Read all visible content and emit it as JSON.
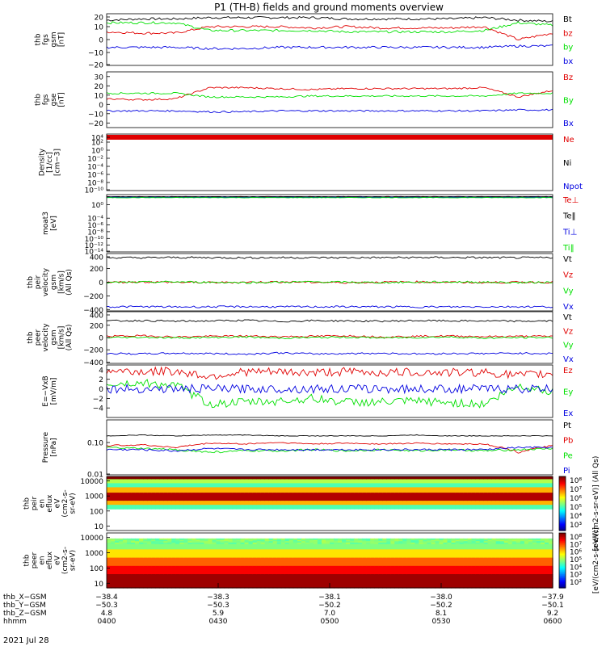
{
  "title": "P1 (TH-B) fields and ground moments overview",
  "date_label": "2021 Jul 28",
  "colors": {
    "black": "#000000",
    "red": "#e00000",
    "green": "#00e000",
    "blue": "#0000e0"
  },
  "chart_data": [
    {
      "type": "line",
      "ylabel": [
        "thb",
        "fgs",
        "gsm",
        "[nT]"
      ],
      "ylim": [
        -20,
        20
      ],
      "ticks": [
        "20",
        "10",
        "0",
        "−10",
        "−20"
      ],
      "tick_values": [
        20,
        10,
        0,
        -10,
        -20
      ],
      "series": [
        {
          "name": "Bt",
          "color": "black",
          "values": [
            15,
            16,
            16,
            17,
            17,
            17,
            17,
            16,
            16,
            16,
            16,
            17,
            15,
            14
          ]
        },
        {
          "name": "bz",
          "color": "red",
          "values": [
            6,
            5,
            5,
            10,
            10,
            10,
            9,
            10,
            9,
            9,
            9,
            10,
            0,
            5
          ]
        },
        {
          "name": "by",
          "color": "green",
          "values": [
            13,
            13,
            13,
            7,
            7,
            7,
            7,
            6,
            6,
            6,
            6,
            7,
            13,
            11
          ]
        },
        {
          "name": "bx",
          "color": "blue",
          "values": [
            -6,
            -6,
            -6,
            -7,
            -7,
            -6,
            -6,
            -6,
            -6,
            -6,
            -6,
            -6,
            -5,
            -5
          ]
        }
      ]
    },
    {
      "type": "line",
      "ylabel": [
        "thb",
        "fgs",
        "gse",
        "[nT]"
      ],
      "ylim": [
        -25,
        35
      ],
      "ticks": [
        "30",
        "20",
        "10",
        "0",
        "−10",
        "−20"
      ],
      "tick_values": [
        30,
        20,
        10,
        0,
        -10,
        -20
      ],
      "series": [
        {
          "name": "Bz",
          "color": "red",
          "values": [
            6,
            5,
            6,
            18,
            18,
            17,
            16,
            17,
            17,
            17,
            17,
            18,
            8,
            15
          ]
        },
        {
          "name": "By",
          "color": "green",
          "values": [
            12,
            12,
            12,
            8,
            8,
            8,
            9,
            9,
            9,
            9,
            9,
            9,
            12,
            12
          ]
        },
        {
          "name": "Bx",
          "color": "blue",
          "values": [
            -7,
            -7,
            -7,
            -8,
            -8,
            -7,
            -7,
            -7,
            -7,
            -7,
            -7,
            -7,
            -6,
            -6
          ]
        }
      ]
    },
    {
      "type": "line",
      "ylabel": [
        "Density",
        "[1/cc]",
        "[cm−3]"
      ],
      "ylim": [
        -10,
        4
      ],
      "log": true,
      "ticks": [
        "10⁴",
        "10²",
        "10⁰",
        "10⁻²",
        "10⁻⁴",
        "10⁻⁶",
        "10⁻⁸",
        "10⁻¹⁰"
      ],
      "tick_values": [
        4,
        2,
        0,
        -2,
        -4,
        -6,
        -8,
        -10
      ],
      "series": [
        {
          "name": "Ne",
          "color": "red",
          "values": [
            1.5,
            1.5,
            1.5,
            1.5,
            1.5,
            1.5,
            1.5,
            1.5,
            1.5,
            1.5,
            1.5,
            1.5,
            1.5,
            1.5
          ]
        },
        {
          "name": "Ni",
          "color": "black",
          "values": [
            1.6,
            1.6,
            1.6,
            1.6,
            1.6,
            1.6,
            1.6,
            1.6,
            1.6,
            1.6,
            1.6,
            1.6,
            1.6,
            1.6
          ]
        },
        {
          "name": "Npot",
          "color": "blue",
          "values": [
            1.3,
            1.3,
            1.3,
            1.3,
            1.3,
            1.3,
            1.3,
            1.3,
            1.3,
            1.3,
            1.3,
            1.3,
            1.3,
            1.3
          ]
        }
      ]
    },
    {
      "type": "line",
      "ylabel": [
        "moat3",
        "[eV]"
      ],
      "ylim": [
        -14,
        3
      ],
      "log": true,
      "ticks": [
        "10⁰",
        "10⁻⁴",
        "10⁻⁶",
        "10⁻⁸",
        "10⁻¹⁰",
        "10⁻¹²",
        "10⁻¹⁴"
      ],
      "tick_values": [
        0,
        -4,
        -6,
        -8,
        -10,
        -12,
        -14
      ],
      "series": [
        {
          "name": "Te⊥",
          "color": "red",
          "values": [
            2.3,
            2.3,
            2.3,
            2.3,
            2.3,
            2.3,
            2.3,
            2.3,
            2.3,
            2.3,
            2.3,
            2.3,
            2.3,
            2.3
          ]
        },
        {
          "name": "Te‖",
          "color": "black",
          "values": [
            2.4,
            2.4,
            2.4,
            2.4,
            2.4,
            2.4,
            2.4,
            2.4,
            2.4,
            2.4,
            2.4,
            2.4,
            2.4,
            2.4
          ]
        },
        {
          "name": "Ti⊥",
          "color": "blue",
          "values": [
            2.2,
            2.2,
            2.2,
            2.2,
            2.2,
            2.2,
            2.2,
            2.2,
            2.2,
            2.2,
            2.2,
            2.2,
            2.2,
            2.2
          ]
        },
        {
          "name": "Ti‖",
          "color": "green",
          "values": [
            2.1,
            2.1,
            2.1,
            2.1,
            2.1,
            2.1,
            2.1,
            2.1,
            2.1,
            2.1,
            2.1,
            2.1,
            2.1,
            2.1
          ]
        }
      ]
    },
    {
      "type": "line",
      "ylabel": [
        "thb",
        "peir",
        "velocity",
        "gsm",
        "[km/s]",
        "(All Qs)"
      ],
      "ylim": [
        -420,
        420
      ],
      "ticks": [
        "400",
        "200",
        "0",
        "−200",
        "−400"
      ],
      "tick_values": [
        400,
        200,
        0,
        -200,
        -400
      ],
      "series": [
        {
          "name": "Vt",
          "color": "black",
          "values": [
            360,
            358,
            362,
            360,
            358,
            361,
            360,
            359,
            360,
            361,
            362,
            360,
            358,
            360
          ]
        },
        {
          "name": "Vz",
          "color": "red",
          "values": [
            0,
            5,
            0,
            -5,
            0,
            5,
            0,
            -5,
            0,
            5,
            0,
            -5,
            0,
            0
          ]
        },
        {
          "name": "Vy",
          "color": "green",
          "values": [
            -5,
            0,
            5,
            0,
            -5,
            0,
            5,
            0,
            -5,
            0,
            5,
            0,
            -5,
            0
          ]
        },
        {
          "name": "Vx",
          "color": "blue",
          "values": [
            -360,
            -358,
            -362,
            -360,
            -358,
            -361,
            -360,
            -359,
            -360,
            -361,
            -362,
            -360,
            -358,
            -360
          ]
        }
      ]
    },
    {
      "type": "line",
      "ylabel": [
        "thb",
        "peer",
        "velocity",
        "gsm",
        "[km/s]",
        "(All Qs)"
      ],
      "ylim": [
        -420,
        420
      ],
      "ticks": [
        "400",
        "200",
        "0",
        "−200",
        "−400"
      ],
      "tick_values": [
        400,
        200,
        0,
        -200,
        -400
      ],
      "series": [
        {
          "name": "Vt",
          "color": "black",
          "values": [
            270,
            275,
            265,
            270,
            280,
            260,
            275,
            270,
            265,
            275,
            270,
            270,
            265,
            270
          ]
        },
        {
          "name": "Vz",
          "color": "red",
          "values": [
            20,
            30,
            10,
            20,
            25,
            15,
            20,
            30,
            10,
            20,
            25,
            15,
            20,
            20
          ]
        },
        {
          "name": "Vy",
          "color": "green",
          "values": [
            0,
            5,
            -5,
            0,
            10,
            -10,
            0,
            5,
            -5,
            0,
            10,
            -10,
            0,
            0
          ]
        },
        {
          "name": "Vx",
          "color": "blue",
          "values": [
            -260,
            -265,
            -255,
            -260,
            -270,
            -250,
            -265,
            -260,
            -255,
            -265,
            -260,
            -260,
            -255,
            -260
          ]
        }
      ]
    },
    {
      "type": "line",
      "ylabel": [
        "E=−VxB",
        "[mV/m]"
      ],
      "ylim": [
        -6,
        5
      ],
      "ticks": [
        "4",
        "2",
        "0",
        "−2",
        "−4"
      ],
      "tick_values": [
        4,
        2,
        0,
        -2,
        -4
      ],
      "series": [
        {
          "name": "Ez",
          "color": "red",
          "values": [
            3.8,
            3.6,
            3.7,
            2.6,
            3.6,
            3.5,
            3.4,
            3.6,
            3.4,
            3.5,
            3.4,
            3.5,
            2.8,
            3.2
          ]
        },
        {
          "name": "Ey",
          "color": "green",
          "values": [
            1,
            1.2,
            0.8,
            -3.2,
            -2.8,
            -2.6,
            -2,
            -2.8,
            -2.8,
            -2.6,
            -2.9,
            -3.2,
            0.6,
            -0.5
          ]
        },
        {
          "name": "Ex",
          "color": "blue",
          "values": [
            0,
            0,
            0,
            0,
            0,
            0,
            0,
            0,
            0,
            0,
            0,
            0,
            0,
            0
          ]
        }
      ]
    },
    {
      "type": "line",
      "ylabel": [
        "Pressure",
        "[nPa]"
      ],
      "ylim": [
        0.01,
        0.5
      ],
      "log": true,
      "ticks": [
        "0.10",
        "0.01"
      ],
      "tick_values": [
        0.1,
        0.01
      ],
      "series": [
        {
          "name": "Pt",
          "color": "black",
          "values": [
            0.16,
            0.17,
            0.16,
            0.17,
            0.17,
            0.16,
            0.16,
            0.16,
            0.16,
            0.17,
            0.16,
            0.16,
            0.16,
            0.16
          ]
        },
        {
          "name": "Pb",
          "color": "red",
          "values": [
            0.08,
            0.085,
            0.07,
            0.095,
            0.09,
            0.1,
            0.09,
            0.095,
            0.09,
            0.095,
            0.09,
            0.09,
            0.05,
            0.08
          ]
        },
        {
          "name": "Pe",
          "color": "green",
          "values": [
            0.07,
            0.065,
            0.06,
            0.05,
            0.055,
            0.055,
            0.06,
            0.055,
            0.06,
            0.055,
            0.06,
            0.055,
            0.06,
            0.065
          ]
        },
        {
          "name": "Pi",
          "color": "blue",
          "values": [
            0.06,
            0.06,
            0.055,
            0.065,
            0.06,
            0.06,
            0.06,
            0.06,
            0.06,
            0.06,
            0.06,
            0.06,
            0.07,
            0.07
          ]
        }
      ]
    },
    {
      "type": "heatmap",
      "ylabel": [
        "thb",
        "peir",
        "en",
        "eflux",
        "eV",
        "(cm2-s-",
        "sr-eV)"
      ],
      "ylim": [
        5,
        20000
      ],
      "log": true,
      "ticks": [
        "10000",
        "1000",
        "100",
        "10"
      ],
      "tick_values": [
        10000,
        1000,
        100,
        10
      ],
      "colorbar_ticks": [
        "10⁸",
        "10⁷",
        "10⁶",
        "10⁵",
        "10⁴",
        "10³"
      ],
      "colorbar_label": "[eV/(cm2-s-sr-eV)] (All Qs)"
    },
    {
      "type": "heatmap",
      "ylabel": [
        "thb",
        "peer",
        "en",
        "eflux",
        "eV",
        "(cm2-s-",
        "sr-eV)"
      ],
      "ylim": [
        5,
        20000
      ],
      "log": true,
      "ticks": [
        "10000",
        "1000",
        "100",
        "10"
      ],
      "tick_values": [
        10000,
        1000,
        100,
        10
      ],
      "colorbar_ticks": [
        "10⁸",
        "10⁷",
        "10⁶",
        "10⁵",
        "10⁴",
        "10³",
        "10²"
      ],
      "colorbar_label": "[eV/(cm2-s-sr-eV)]"
    }
  ],
  "x_axis": {
    "rows": [
      {
        "label": "thb_X−GSM",
        "values": [
          "−38.4",
          "−38.3",
          "−38.1",
          "−38.0",
          "−37.9"
        ]
      },
      {
        "label": "thb_Y−GSM",
        "values": [
          "−50.3",
          "−50.3",
          "−50.2",
          "−50.2",
          "−50.1"
        ]
      },
      {
        "label": "thb_Z−GSM",
        "values": [
          "4.8",
          "5.9",
          "7.0",
          "8.1",
          "9.2"
        ]
      },
      {
        "label": "hhmm",
        "values": [
          "0400",
          "0430",
          "0500",
          "0530",
          "0600"
        ]
      }
    ]
  }
}
